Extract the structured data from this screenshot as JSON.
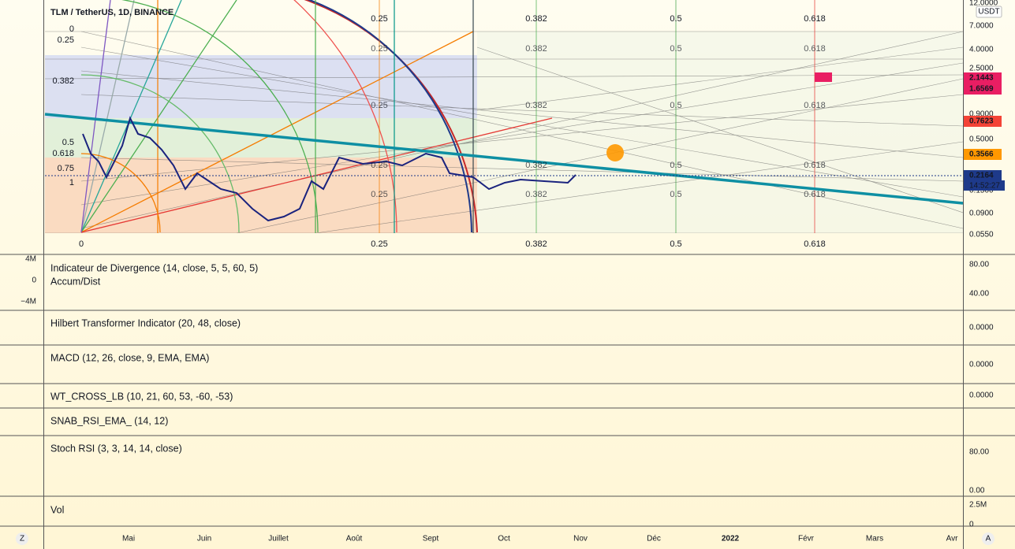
{
  "header": {
    "title": "TLM / TetherUS, 1D, BINANCE",
    "currency": "USDT"
  },
  "price_axis": [
    "12.0000",
    "7.0000",
    "4.0000",
    "2.5000",
    "0.9000",
    "0.5000",
    "0.1500",
    "0.0900",
    "0.0550"
  ],
  "price_tags": [
    {
      "text": "2.1443",
      "color": "#e91e63"
    },
    {
      "text": "1.6569",
      "color": "#e91e63"
    },
    {
      "text": "0.7623",
      "color": "#f44336"
    },
    {
      "text": "0.3566",
      "color": "#ff9800"
    },
    {
      "text": "0.2164",
      "color": "#1e3a8a"
    }
  ],
  "countdown": "14:52:27",
  "fib_time_labels": [
    "0",
    "0.25",
    "0.382",
    "0.5",
    "0.618"
  ],
  "fib_left_labels": [
    "0",
    "0.25",
    "0.382",
    "0.5",
    "0.618",
    "0.75",
    "1"
  ],
  "panes": [
    {
      "titles": [
        "Indicateur de Divergence (14, close, 5, 5, 60, 5)",
        "Accum/Dist"
      ],
      "right_axis": [
        "80.00",
        "40.00"
      ],
      "left_axis": [
        "4M",
        "0",
        "−4M"
      ]
    },
    {
      "titles": [
        "Hilbert Transformer Indicator (20, 48, close)"
      ],
      "right_axis": [
        "0.0000"
      ]
    },
    {
      "titles": [
        "MACD (12, 26, close, 9, EMA, EMA)"
      ],
      "right_axis": [
        "0.0000"
      ]
    },
    {
      "titles": [
        "WT_CROSS_LB (10, 21, 60, 53, -60, -53)"
      ],
      "right_axis": [
        "0.0000"
      ]
    },
    {
      "titles": [
        "SNAB_RSI_EMA_ (14, 12)"
      ],
      "right_axis": []
    },
    {
      "titles": [
        "Stoch RSI (3, 3, 14, 14, close)"
      ],
      "right_axis": [
        "80.00",
        "0.00"
      ]
    },
    {
      "titles": [
        "Vol"
      ],
      "right_axis": [
        "2.5M",
        "0"
      ]
    }
  ],
  "time_axis": [
    "Mai",
    "Juin",
    "Juillet",
    "Août",
    "Sept",
    "Oct",
    "Nov",
    "Déc",
    "2022",
    "Févr",
    "Mars",
    "Avr"
  ],
  "corner_buttons": [
    "Z",
    "A"
  ]
}
